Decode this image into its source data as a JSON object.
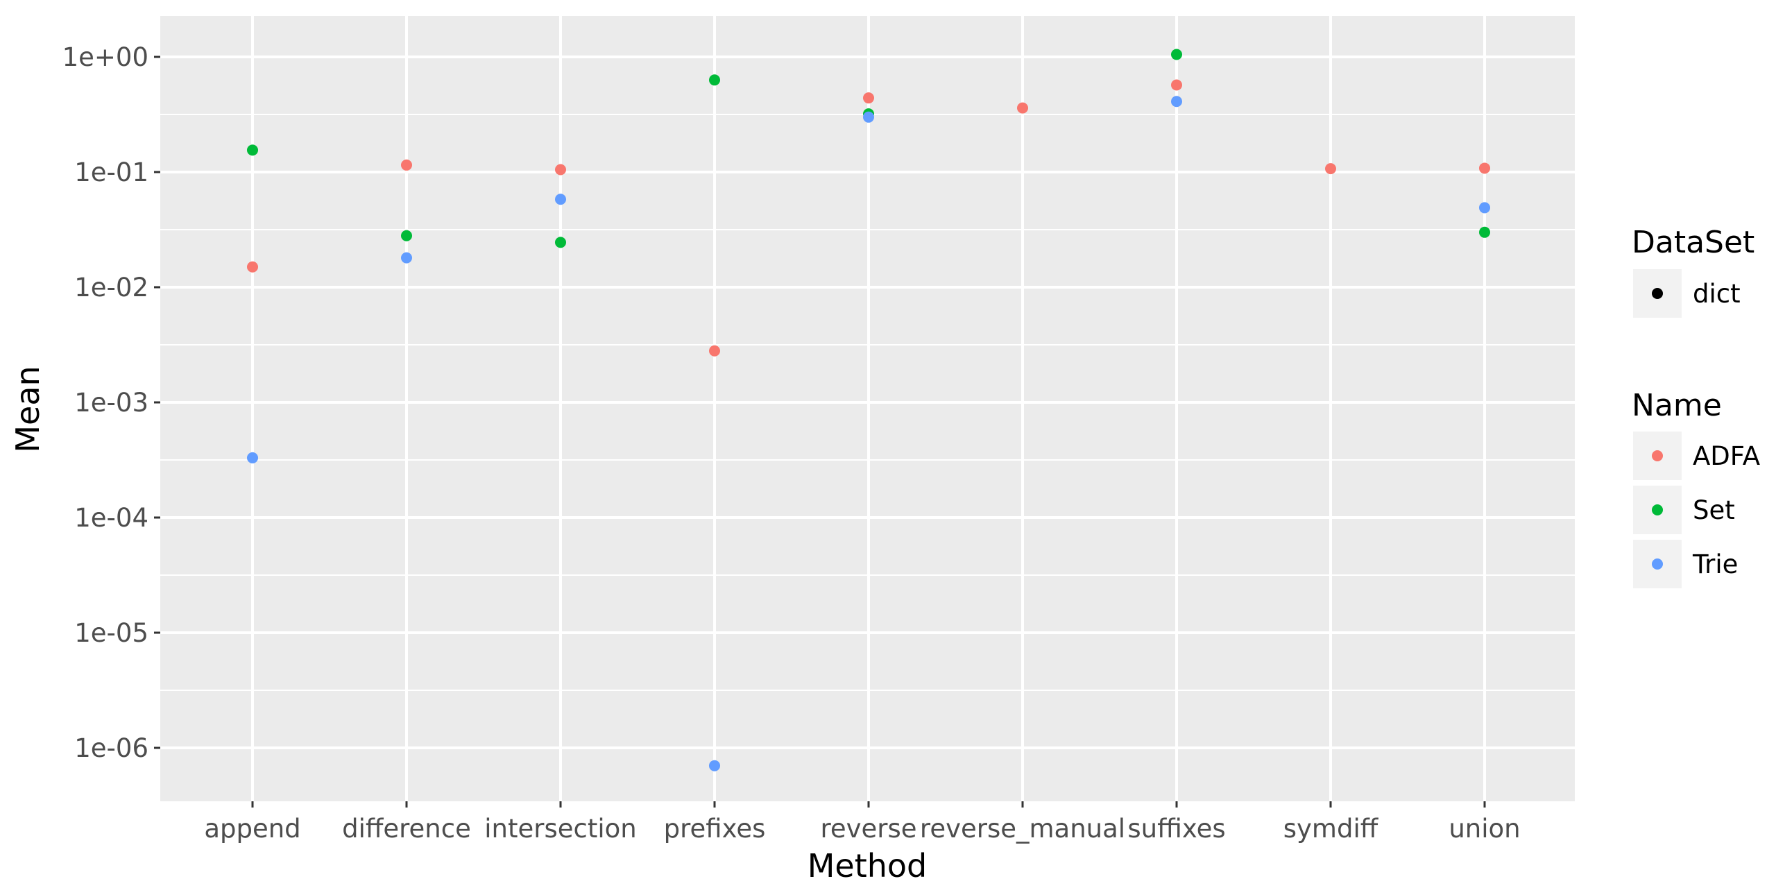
{
  "chart_data": {
    "type": "scatter",
    "xlabel": "Method",
    "ylabel": "Mean",
    "y_scale": "log10",
    "ylim": [
      3e-07,
      2.0
    ],
    "grid": true,
    "legend_position": "right",
    "categories": [
      "append",
      "difference",
      "intersection",
      "prefixes",
      "reverse",
      "reverse_manual",
      "suffixes",
      "symdiff",
      "union"
    ],
    "y_ticks": [
      {
        "value": 1,
        "label": "1e+00"
      },
      {
        "value": 0.1,
        "label": "1e-01"
      },
      {
        "value": 0.01,
        "label": "1e-02"
      },
      {
        "value": 0.001,
        "label": "1e-03"
      },
      {
        "value": 0.0001,
        "label": "1e-04"
      },
      {
        "value": 1e-05,
        "label": "1e-05"
      },
      {
        "value": 1e-06,
        "label": "1e-06"
      }
    ],
    "series": [
      {
        "name": "ADFA",
        "color": "#F8766D",
        "values": [
          0.015,
          0.115,
          0.105,
          0.0028,
          0.44,
          0.36,
          0.57,
          0.107,
          0.108
        ]
      },
      {
        "name": "Set",
        "color": "#00BA38",
        "values": [
          0.155,
          0.028,
          0.0245,
          0.63,
          0.32,
          null,
          1.05,
          null,
          0.03
        ]
      },
      {
        "name": "Trie",
        "color": "#619CFF",
        "values": [
          0.00033,
          0.018,
          0.058,
          7e-07,
          0.3,
          null,
          0.41,
          null,
          0.049
        ]
      }
    ],
    "legends": [
      {
        "title": "DataSet",
        "entries": [
          {
            "label": "dict",
            "color": "#000000"
          }
        ]
      },
      {
        "title": "Name",
        "entries": [
          {
            "label": "ADFA",
            "color": "#F8766D"
          },
          {
            "label": "Set",
            "color": "#00BA38"
          },
          {
            "label": "Trie",
            "color": "#619CFF"
          }
        ]
      }
    ],
    "colors": {
      "panel_background": "#EBEBEB",
      "grid": "#FFFFFF",
      "legend_key_background": "#F2F2F2"
    }
  }
}
